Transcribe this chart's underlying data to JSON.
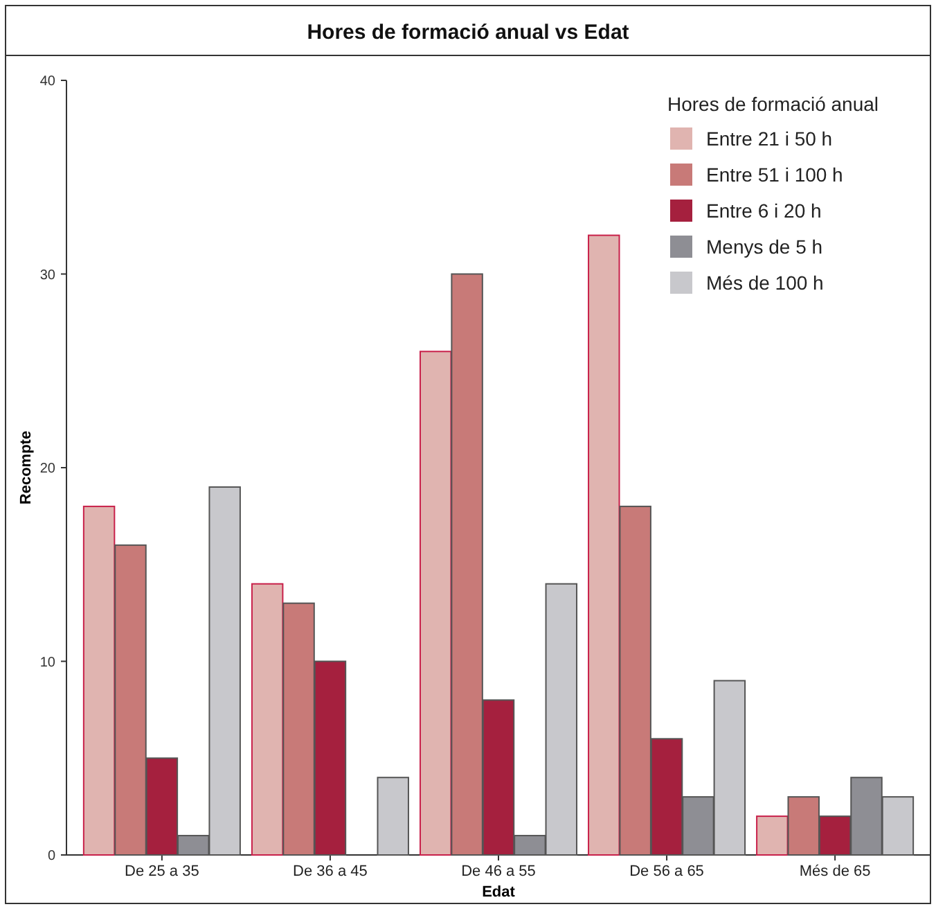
{
  "chart_data": {
    "type": "bar",
    "title": "Hores de formació anual vs Edat",
    "xlabel": "Edat",
    "ylabel": "Recompte",
    "legend_title": "Hores de formació anual",
    "categories": [
      "De 25 a 35",
      "De 36 a 45",
      "De 46 a 55",
      "De 56 a 65",
      "Més de 65"
    ],
    "series": [
      {
        "name": "Entre 21 i 50 h",
        "color": "#e0b4b0",
        "values": [
          18,
          14,
          26,
          32,
          2
        ]
      },
      {
        "name": "Entre 51 i 100 h",
        "color": "#c87a78",
        "values": [
          16,
          13,
          30,
          18,
          3
        ]
      },
      {
        "name": "Entre 6 i 20 h",
        "color": "#a5203e",
        "values": [
          5,
          10,
          8,
          6,
          2
        ]
      },
      {
        "name": "Menys de 5 h",
        "color": "#8e8e94",
        "values": [
          1,
          0,
          1,
          3,
          4
        ]
      },
      {
        "name": "Més de 100 h",
        "color": "#c8c8cc",
        "values": [
          19,
          4,
          14,
          9,
          3
        ]
      }
    ],
    "ylim": [
      0,
      40
    ],
    "yticks": [
      0,
      10,
      20,
      30,
      40
    ],
    "grid": false,
    "legend": "top right"
  }
}
